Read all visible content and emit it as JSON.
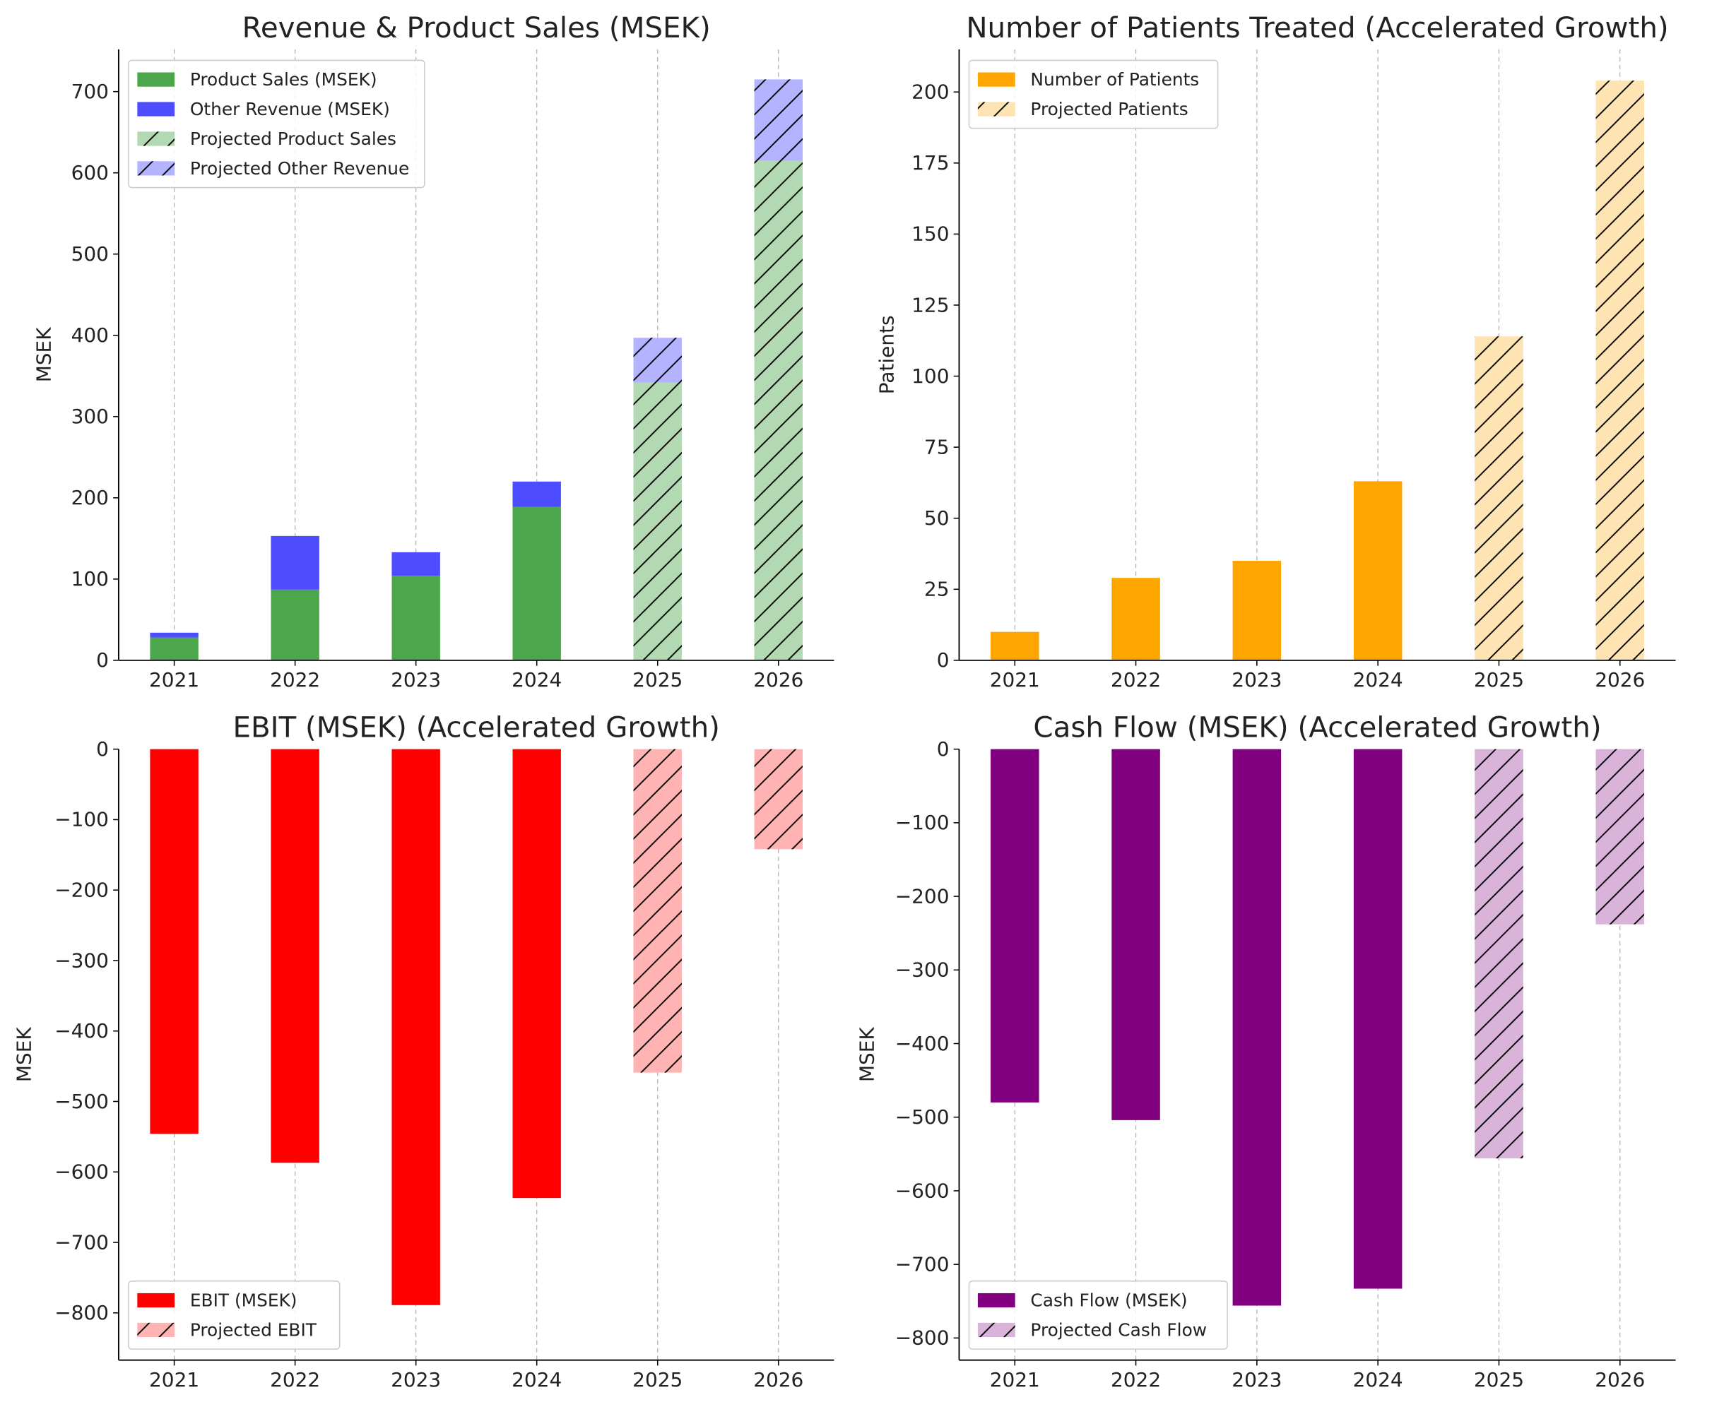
{
  "chart_data": [
    {
      "type": "bar",
      "stacked": true,
      "title": "Revenue & Product Sales (MSEK)",
      "xlabel": "",
      "ylabel": "MSEK",
      "categories": [
        "2021",
        "2022",
        "2023",
        "2024",
        "2025",
        "2026"
      ],
      "projected_from": "2025",
      "ylim": [
        0,
        752
      ],
      "yticks": [
        0,
        100,
        200,
        300,
        400,
        500,
        600,
        700
      ],
      "grid": "x-dashed",
      "legend_position": "top-left",
      "series": [
        {
          "name": "Product Sales (MSEK)",
          "values": [
            28,
            87,
            104,
            189,
            null,
            null
          ],
          "color": "#4ca64c"
        },
        {
          "name": "Other Revenue (MSEK)",
          "values": [
            6,
            66,
            29,
            31,
            null,
            null
          ],
          "color": "#4d4dff"
        },
        {
          "name": "Projected Product Sales",
          "values": [
            null,
            null,
            null,
            null,
            342,
            615
          ],
          "color": "#b3d9b3",
          "hatch": true
        },
        {
          "name": "Projected Other Revenue",
          "values": [
            null,
            null,
            null,
            null,
            55,
            100
          ],
          "color": "#b3b3ff",
          "hatch": true
        }
      ]
    },
    {
      "type": "bar",
      "title": "Number of Patients Treated (Accelerated Growth)",
      "xlabel": "",
      "ylabel": "Patients",
      "categories": [
        "2021",
        "2022",
        "2023",
        "2024",
        "2025",
        "2026"
      ],
      "ylim": [
        0,
        215
      ],
      "yticks": [
        0,
        25,
        50,
        75,
        100,
        125,
        150,
        175,
        200
      ],
      "grid": "x-dashed",
      "legend_position": "top-left",
      "series": [
        {
          "name": "Number of Patients",
          "values": [
            10,
            29,
            35,
            63,
            null,
            null
          ],
          "color": "#ffa500"
        },
        {
          "name": "Projected Patients",
          "values": [
            null,
            null,
            null,
            null,
            114,
            204
          ],
          "color": "#ffe4b3",
          "hatch": true
        }
      ]
    },
    {
      "type": "bar",
      "title": "EBIT (MSEK) (Accelerated Growth)",
      "xlabel": "",
      "ylabel": "MSEK",
      "categories": [
        "2021",
        "2022",
        "2023",
        "2024",
        "2025",
        "2026"
      ],
      "ylim": [
        -867,
        0
      ],
      "yticks": [
        0,
        -100,
        -200,
        -300,
        -400,
        -500,
        -600,
        -700,
        -800
      ],
      "grid": "x-dashed",
      "legend_position": "bottom-left",
      "series": [
        {
          "name": "EBIT (MSEK)",
          "values": [
            -546,
            -587,
            -789,
            -637,
            null,
            null
          ],
          "color": "#ff0000"
        },
        {
          "name": "Projected EBIT",
          "values": [
            null,
            null,
            null,
            null,
            -459,
            -142
          ],
          "color": "#ffb3b3",
          "hatch": true
        }
      ]
    },
    {
      "type": "bar",
      "title": "Cash Flow (MSEK) (Accelerated Growth)",
      "xlabel": "",
      "ylabel": "MSEK",
      "categories": [
        "2021",
        "2022",
        "2023",
        "2024",
        "2025",
        "2026"
      ],
      "ylim": [
        -830,
        0
      ],
      "yticks": [
        0,
        -100,
        -200,
        -300,
        -400,
        -500,
        -600,
        -700,
        -800
      ],
      "grid": "x-dashed",
      "legend_position": "bottom-left",
      "series": [
        {
          "name": "Cash Flow (MSEK)",
          "values": [
            -480,
            -504,
            -756,
            -733,
            null,
            null
          ],
          "color": "#800080"
        },
        {
          "name": "Projected Cash Flow",
          "values": [
            null,
            null,
            null,
            null,
            -556,
            -238
          ],
          "color": "#d9b3d9",
          "hatch": true
        }
      ]
    }
  ]
}
